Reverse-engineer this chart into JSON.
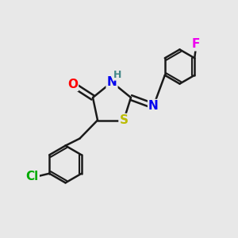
{
  "bg_color": "#e8e8e8",
  "bond_color": "#1a1a1a",
  "bond_width": 1.8,
  "atom_colors": {
    "O": "#ff0000",
    "N": "#0000ee",
    "S": "#bbbb00",
    "Cl": "#00aa00",
    "F": "#ee00ee",
    "H": "#448888",
    "C": "#1a1a1a"
  },
  "font_size_atom": 11,
  "font_size_H": 9,
  "font_size_F": 11,
  "font_size_Cl": 11
}
